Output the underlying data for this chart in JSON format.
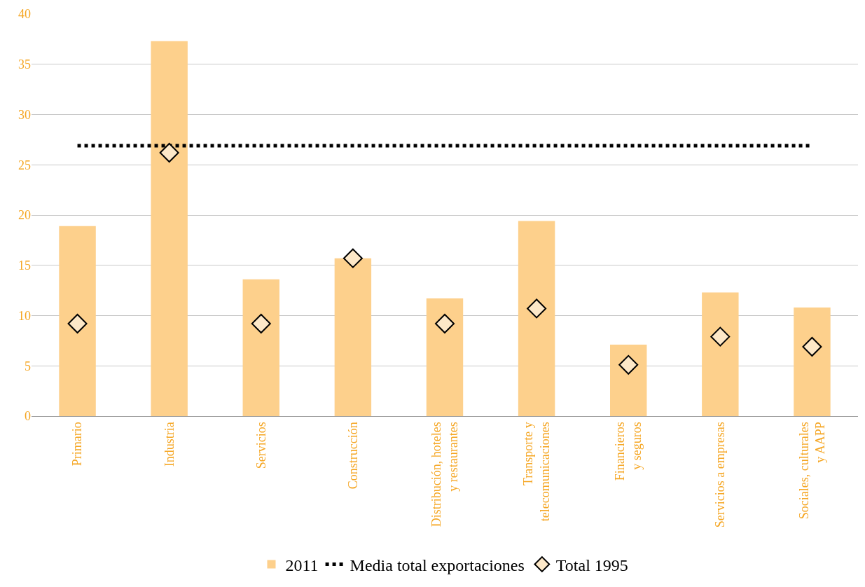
{
  "chart_data": {
    "type": "bar",
    "categories": [
      "Primario",
      "Industria",
      "Servicios",
      "Construcción",
      "Distribución, hoteles\ny restaurantes",
      "Transporte y\ntelecomunicaciones",
      "Financieros\ny seguros",
      "Servicios a empresas",
      "Sociales, culturales\ny AAPP"
    ],
    "series": [
      {
        "name": "2011",
        "color": "#fdd08c",
        "values": [
          18.9,
          37.3,
          13.6,
          15.7,
          11.7,
          19.4,
          7.1,
          12.3,
          10.8
        ]
      },
      {
        "name": "Total 1995",
        "type": "scatter",
        "marker": "diamond",
        "color": "#fde8c8",
        "values": [
          9.2,
          26.2,
          9.2,
          15.7,
          9.2,
          10.7,
          5.1,
          7.9,
          6.9
        ]
      }
    ],
    "ref_lines": [
      {
        "axis": "y",
        "value": 26.9,
        "label": "Media total exportaciones",
        "color": "#000000",
        "line_style": "dotted"
      }
    ],
    "ylim": [
      0,
      40
    ],
    "yticks": [
      0,
      5,
      10,
      15,
      20,
      25,
      30,
      35,
      40
    ],
    "grid": "y",
    "legend": "bottom"
  }
}
